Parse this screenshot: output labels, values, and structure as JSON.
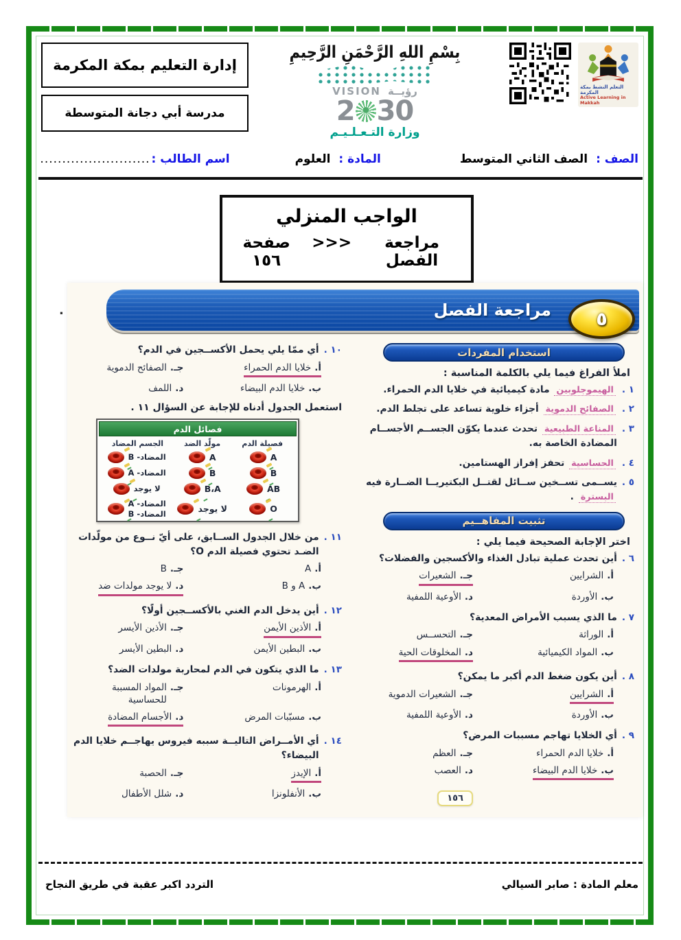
{
  "colors": {
    "frame_green": "#168a16",
    "label_blue": "#1515e6",
    "banner_blue": "#1d5cb7",
    "pill_text": "#f2d9ae",
    "answer_pink": "#c0467c",
    "handwriting_pink": "#c85f9f",
    "table_green": "#2e8b45",
    "badge_yellow": "#ffe23e"
  },
  "header": {
    "admin_box": "إدارة التعليم بمكة المكرمة",
    "school_box": "مدرسة أبي دجانة المتوسطة",
    "bismillah": "بِسْمِ اللهِ الرَّحْمَنِ الرَّحِيمِ",
    "vision": {
      "ar": "رؤيــة",
      "en": "VISION",
      "year_left": "2",
      "year_right": "30",
      "ministry": "وزارة التـعـلـيـم"
    },
    "logo": {
      "line1": "التعلم النشط بمكة المكرمة",
      "line2": "Active Learning in Makkah"
    }
  },
  "info_line": {
    "class_label": "الصف :",
    "class_value": "الصف الثاني المتوسط",
    "subject_label": "المادة :",
    "subject_value": "العلوم",
    "student_label": "اسم الطالب :",
    "dots": "........................................................................"
  },
  "homework_box": {
    "line1": "الواجب المنزلي",
    "line2_right": "مراجعة الفصل",
    "arrows": ">>>",
    "line2_left": "صفحة ١٥٦"
  },
  "worksheet": {
    "banner_title": "مراجعة الفصل",
    "badge": "٥",
    "stray_dot": ".",
    "page_number": "١٥٦",
    "right_column": {
      "pill1": "استخدام المفردات",
      "intro": "املأ الفراغ فيما يلي بالكلمة المناسبة :",
      "fill_items": [
        {
          "num": "١",
          "parts": [
            {
              "v": "الهيموجلوبين",
              "answer": true
            },
            {
              "v": " مادة كيميائية في خلايا الدم الحمراء.",
              "answer": false
            }
          ]
        },
        {
          "num": "٢",
          "parts": [
            {
              "v": "الصفائح الدموية",
              "answer": true
            },
            {
              "v": " أجزاء خلوية تساعد على تجلط الدم.",
              "answer": false
            }
          ]
        },
        {
          "num": "٣",
          "parts": [
            {
              "v": "المناعة الطبيعية",
              "answer": true
            },
            {
              "v": " تحدث عندما يكوّن الجســم الأجســام المضادة الخاصة به.",
              "answer": false
            }
          ]
        },
        {
          "num": "٤",
          "parts": [
            {
              "v": "الحساسية",
              "answer": true
            },
            {
              "v": " تحفز إفراز الهستامين.",
              "answer": false
            }
          ]
        },
        {
          "num": "٥",
          "parts": [
            {
              "v": "يســمى تســخين ســائل لقتــل البكتيريــا الضــارة فيه ",
              "answer": false
            },
            {
              "v": "البسترة",
              "answer": true
            },
            {
              "v": " .",
              "answer": false
            }
          ]
        }
      ],
      "pill2": "تثبيت المفاهــيم",
      "intro2": "اختر الإجابة الصحيحة فيما يلي :",
      "questions": [
        {
          "num": "٦",
          "text": "أين تحدث عملية تبادل الغذاء والأكسجين والفضلات؟",
          "options": [
            {
              "k": "أ.",
              "v": "الشرايين",
              "ans": false
            },
            {
              "k": "جـ.",
              "v": "الشعيرات",
              "ans": true
            },
            {
              "k": "ب.",
              "v": "الأوردة",
              "ans": false
            },
            {
              "k": "د.",
              "v": "الأوعية اللمفية",
              "ans": false
            }
          ]
        },
        {
          "num": "٧",
          "text": "ما الذي يسبب الأمراض المعدية؟",
          "options": [
            {
              "k": "أ.",
              "v": "الوراثة",
              "ans": false
            },
            {
              "k": "جـ.",
              "v": "التحســس",
              "ans": false
            },
            {
              "k": "ب.",
              "v": "المواد الكيميائية",
              "ans": false
            },
            {
              "k": "د.",
              "v": "المخلوقات الحية",
              "ans": true
            }
          ]
        },
        {
          "num": "٨",
          "text": "أين يكون ضغط الدم أكبر ما يمكن؟",
          "options": [
            {
              "k": "أ.",
              "v": "الشرايين",
              "ans": true
            },
            {
              "k": "جـ.",
              "v": "الشعيرات الدموية",
              "ans": false
            },
            {
              "k": "ب.",
              "v": "الأوردة",
              "ans": false
            },
            {
              "k": "د.",
              "v": "الأوعية اللمفية",
              "ans": false
            }
          ]
        },
        {
          "num": "٩",
          "text": "أي الخلايا تهاجم مسببات المرض؟",
          "options": [
            {
              "k": "أ.",
              "v": "خلايا الدم الحمراء",
              "ans": false
            },
            {
              "k": "جـ.",
              "v": "العظم",
              "ans": false
            },
            {
              "k": "ب.",
              "v": "خلايا الدم البيضاء",
              "ans": true
            },
            {
              "k": "د.",
              "v": "العصب",
              "ans": false
            }
          ]
        }
      ]
    },
    "left_column": {
      "q10": {
        "num": "١٠",
        "text": "أي ممّا يلي يحمل الأكســجين في الدم؟",
        "options": [
          {
            "k": "أ.",
            "v": "خلايا الدم الحمراء",
            "ans": true
          },
          {
            "k": "جـ.",
            "v": "الصفائح الدموية",
            "ans": false
          },
          {
            "k": "ب.",
            "v": "خلايا الدم البيضاء",
            "ans": false
          },
          {
            "k": "د.",
            "v": "اللمف",
            "ans": false
          }
        ]
      },
      "note": "استعمل الجدول أدناه للإجابة عن السؤال ١١ .",
      "table": {
        "title": "فصائل الدم",
        "headers": [
          "فصيلة الدم",
          "مولّد الضد",
          "الجسم المضاد"
        ],
        "rows": [
          {
            "type": "A",
            "antigen": "A",
            "antibody": [
              "المضاد- B"
            ]
          },
          {
            "type": "B",
            "antigen": "B",
            "antibody": [
              "المضاد- A"
            ]
          },
          {
            "type": "AB",
            "antigen": "B،A",
            "antibody": [
              "لا يوجد"
            ]
          },
          {
            "type": "O",
            "antigen": "لا يوجد",
            "antibody": [
              "المضاد- A",
              "المضاد- B"
            ]
          }
        ]
      },
      "questions": [
        {
          "num": "١١",
          "text": "من خلال الجدول الســابق، على أيّ نــوع من مولّدات الضـد تحتوي فصيلة الدم O؟",
          "options": [
            {
              "k": "أ.",
              "v": "A",
              "ans": false
            },
            {
              "k": "جـ.",
              "v": "B",
              "ans": false
            },
            {
              "k": "ب.",
              "v": "A و B",
              "ans": false
            },
            {
              "k": "د.",
              "v": "لا يوجد مولدات ضد",
              "ans": true
            }
          ]
        },
        {
          "num": "١٢",
          "text": "أين يدخل الدم الغني بالأكســجين أولًا؟",
          "options": [
            {
              "k": "أ.",
              "v": "الأذين الأيمن",
              "ans": true
            },
            {
              "k": "جـ.",
              "v": "الأذين الأيسر",
              "ans": false
            },
            {
              "k": "ب.",
              "v": "البطين الأيمن",
              "ans": false
            },
            {
              "k": "د.",
              "v": "البطين الأيسر",
              "ans": false
            }
          ]
        },
        {
          "num": "١٣",
          "text": "ما الذي يتكون في الدم لمحاربة مولدات الضد؟",
          "options": [
            {
              "k": "أ.",
              "v": "الهرمونات",
              "ans": false
            },
            {
              "k": "جـ.",
              "v": "المواد المسببة للحساسية",
              "ans": false
            },
            {
              "k": "ب.",
              "v": "مسبّبات المرض",
              "ans": false
            },
            {
              "k": "د.",
              "v": "الأجسام المضادة",
              "ans": true
            }
          ]
        },
        {
          "num": "١٤",
          "text": "أي الأمــراض التاليــة سببه فيروس يهاجــم خلايا الدم البيضاء؟",
          "options": [
            {
              "k": "أ.",
              "v": "الإيدز",
              "ans": true
            },
            {
              "k": "جـ.",
              "v": "الحصبة",
              "ans": false
            },
            {
              "k": "ب.",
              "v": "الأنفلونزا",
              "ans": false
            },
            {
              "k": "د.",
              "v": "شلل الأطفال",
              "ans": false
            }
          ]
        }
      ]
    }
  },
  "footer": {
    "teacher": "معلم المادة : صابر السيالي",
    "motto": "التردد اكبر عقبة في طريق النجاح"
  }
}
